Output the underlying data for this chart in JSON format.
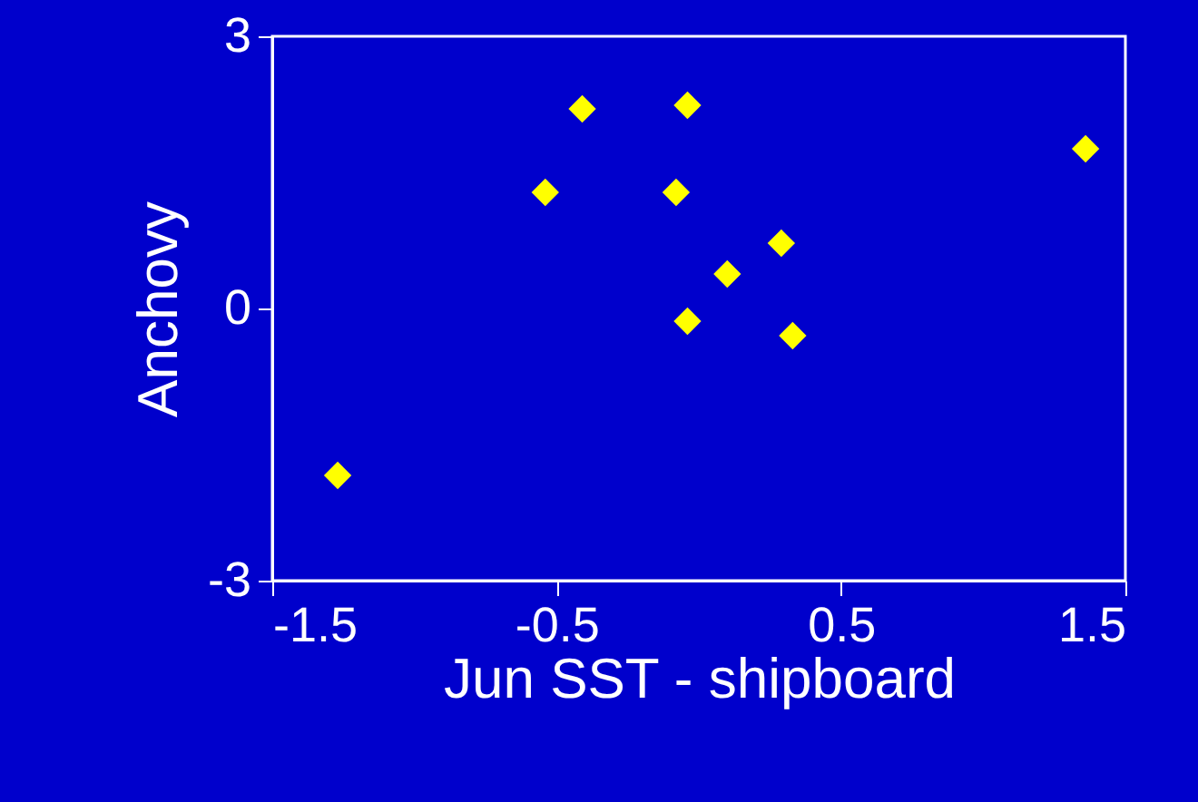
{
  "chart_data": {
    "type": "scatter",
    "xlabel": "Jun SST - shipboard",
    "ylabel": "Anchovy",
    "x": [
      -1.27,
      -0.54,
      -0.41,
      -0.08,
      -0.04,
      -0.04,
      0.1,
      0.29,
      0.33,
      1.36
    ],
    "series": [
      {
        "color": "#ffff00",
        "values": [
          -1.84,
          1.28,
          2.2,
          1.28,
          2.24,
          -0.14,
          0.38,
          0.72,
          -0.3,
          1.76
        ]
      }
    ],
    "xlim": [
      -1.5,
      1.5
    ],
    "xticks": [
      -1.5,
      -0.5,
      0.5,
      1.5
    ],
    "ylim": [
      -3,
      3
    ],
    "yticks": [
      -3,
      0,
      3
    ],
    "marker": "diamond",
    "grid": false,
    "legend": false
  }
}
